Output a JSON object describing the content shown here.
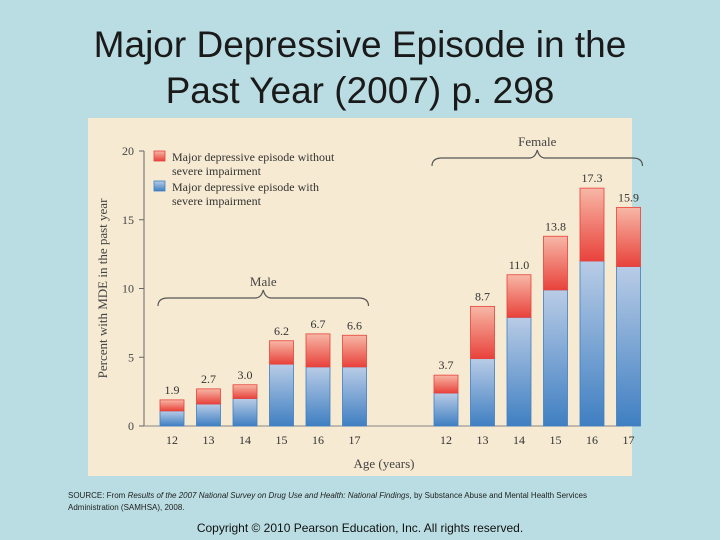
{
  "slide": {
    "title_line1": "Major Depressive Episode in the",
    "title_line2": "Past Year (2007) p. 298",
    "source_prefix": "SOURCE: From ",
    "source_title": "Results of the 2007 National Survey on Drug Use and Health: National Findings",
    "source_suffix": ", by Substance Abuse and Mental Health Services",
    "source_line2": "Administration (SAMHSA), 2008.",
    "copyright": "Copyright © 2010 Pearson Education, Inc. All rights reserved."
  },
  "colors": {
    "background": "#b9dde2",
    "plot_bg": "#f6ead2",
    "without_impairment": "#e8423b",
    "with_impairment": "#3f7fc2"
  },
  "chart_data": {
    "type": "bar",
    "stacked": true,
    "title": "",
    "xlabel": "Age (years)",
    "ylabel": "Percent with MDE in the past year",
    "ylim": [
      0,
      20
    ],
    "yticks": [
      0,
      5,
      10,
      15,
      20
    ],
    "legend": [
      "Major depressive episode without severe impairment",
      "Major depressive episode with severe impairment"
    ],
    "legend_position": "top-left",
    "groups": [
      {
        "name": "Male",
        "categories": [
          "12",
          "13",
          "14",
          "15",
          "16",
          "17"
        ]
      },
      {
        "name": "Female",
        "categories": [
          "12",
          "13",
          "14",
          "15",
          "16",
          "17"
        ]
      }
    ],
    "series": [
      {
        "name": "Major depressive episode with severe impairment",
        "values": [
          1.1,
          1.6,
          2.0,
          4.5,
          4.3,
          4.3,
          2.4,
          4.9,
          7.9,
          9.9,
          12.0,
          11.6
        ]
      },
      {
        "name": "Major depressive episode without severe impairment",
        "values": [
          0.8,
          1.1,
          1.0,
          1.7,
          2.4,
          2.3,
          1.3,
          3.8,
          3.1,
          3.9,
          5.3,
          4.3
        ]
      }
    ],
    "totals": [
      1.9,
      2.7,
      3.0,
      6.2,
      6.7,
      6.6,
      3.7,
      8.7,
      11.0,
      13.8,
      17.3,
      15.9
    ],
    "total_labels": [
      "1.9",
      "2.7",
      "3.0",
      "6.2",
      "6.7",
      "6.6",
      "3.7",
      "8.7",
      "11.0",
      "13.8",
      "17.3",
      "15.9"
    ]
  }
}
